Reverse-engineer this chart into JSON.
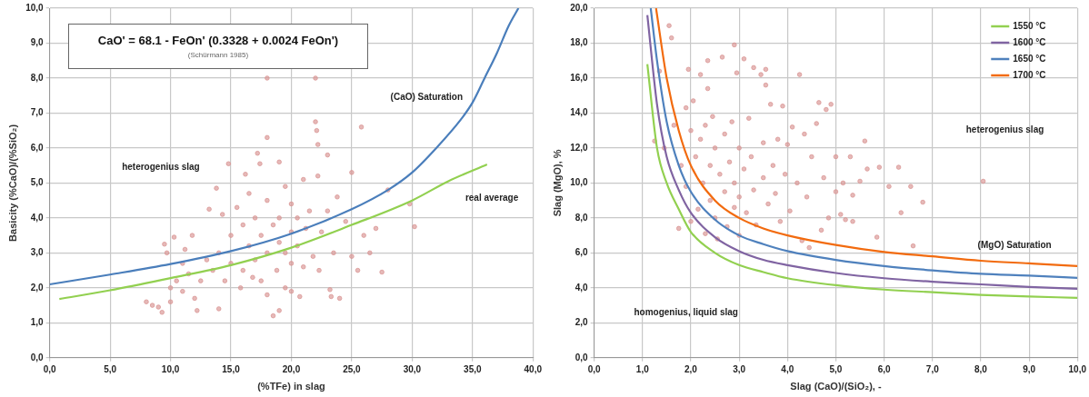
{
  "chart_data": [
    {
      "type": "scatter",
      "xlabel": "(%TFe) in slag",
      "ylabel": "Basicity (%CaO)/(%SiO₂)",
      "xlim": [
        0,
        40
      ],
      "xticks": [
        {
          "value": 0,
          "label": "0,0"
        },
        {
          "value": 5,
          "label": "5,0"
        },
        {
          "value": 10,
          "label": "10,0"
        },
        {
          "value": 15,
          "label": "15,0"
        },
        {
          "value": 20,
          "label": "20,0"
        },
        {
          "value": 25,
          "label": "25,0"
        },
        {
          "value": 30,
          "label": "30,0"
        },
        {
          "value": 35,
          "label": "35,0"
        },
        {
          "value": 40,
          "label": "40,0"
        }
      ],
      "ylim": [
        0,
        10
      ],
      "yticks": [
        {
          "value": 0,
          "label": "0,0"
        },
        {
          "value": 1,
          "label": "1,0"
        },
        {
          "value": 2,
          "label": "2,0"
        },
        {
          "value": 3,
          "label": "3,0"
        },
        {
          "value": 4,
          "label": "4,0"
        },
        {
          "value": 5,
          "label": "5,0"
        },
        {
          "value": 6,
          "label": "6,0"
        },
        {
          "value": 7,
          "label": "7,0"
        },
        {
          "value": 8,
          "label": "8,0"
        },
        {
          "value": 9,
          "label": "9,0"
        },
        {
          "value": 10,
          "label": "10,0"
        }
      ],
      "grid": true,
      "legend": false,
      "series": [
        {
          "type": "scatter",
          "marker": "circle",
          "color": "#d99694",
          "x": [
            8,
            8.5,
            9,
            9.3,
            9.5,
            9.7,
            10,
            10,
            10.3,
            10.5,
            11,
            11,
            11.2,
            11.5,
            11.8,
            12,
            12.2,
            12.5,
            13,
            13.2,
            13.5,
            13.8,
            14,
            14,
            14.3,
            14.5,
            14.8,
            15,
            15,
            15.5,
            15.8,
            16,
            16,
            16.2,
            16.5,
            16.5,
            16.8,
            17,
            17,
            17.2,
            17.4,
            17.5,
            17.5,
            18,
            18,
            18,
            18,
            18,
            18.5,
            18.5,
            18.8,
            19,
            19,
            19,
            19,
            19.5,
            19.5,
            19.5,
            20,
            20,
            20,
            20,
            20.5,
            20.5,
            20.7,
            21,
            21,
            21.2,
            21.5,
            21.8,
            22,
            22,
            22.1,
            22.2,
            22.2,
            22.3,
            22.5,
            23,
            23,
            23.2,
            23.3,
            23.5,
            23.8,
            24,
            24.5,
            25,
            25,
            25.5,
            25.8,
            26,
            26.5,
            27,
            27.5,
            28,
            29.8,
            30.2
          ],
          "values": [
            1.6,
            1.5,
            1.45,
            1.3,
            3.25,
            3.0,
            2.0,
            1.6,
            3.45,
            2.2,
            1.9,
            2.7,
            3.1,
            2.4,
            3.5,
            1.7,
            1.35,
            2.2,
            2.8,
            4.25,
            2.5,
            4.85,
            1.4,
            3.0,
            4.1,
            2.2,
            5.55,
            3.5,
            2.7,
            4.3,
            2.0,
            3.8,
            2.5,
            5.25,
            4.7,
            3.2,
            2.3,
            4.0,
            2.8,
            5.85,
            5.55,
            3.5,
            2.2,
            8.0,
            6.3,
            4.5,
            3.0,
            1.8,
            3.8,
            1.2,
            2.5,
            5.6,
            4.0,
            3.3,
            1.35,
            4.9,
            3.0,
            2.0,
            4.4,
            3.6,
            2.7,
            1.9,
            4.0,
            3.2,
            1.75,
            5.1,
            2.6,
            3.7,
            4.2,
            2.9,
            8.0,
            6.75,
            6.5,
            6.1,
            5.2,
            2.5,
            3.6,
            5.8,
            4.2,
            1.95,
            1.75,
            3.0,
            4.6,
            1.7,
            3.9,
            2.9,
            5.3,
            2.5,
            6.6,
            3.5,
            3.0,
            3.7,
            2.45,
            4.8,
            4.4,
            3.75
          ]
        },
        {
          "type": "line",
          "marker": "none",
          "line_style": "solid",
          "color": "#4a7ebb",
          "x": [
            0,
            5,
            10,
            15,
            20,
            25,
            28,
            30,
            32,
            34,
            35,
            36,
            37,
            38,
            38.8
          ],
          "values": [
            2.1,
            2.38,
            2.68,
            3.05,
            3.55,
            4.25,
            4.8,
            5.3,
            6.0,
            6.8,
            7.3,
            8.0,
            8.7,
            9.5,
            10.0
          ]
        },
        {
          "type": "line",
          "marker": "none",
          "line_style": "solid",
          "color": "#92d050",
          "x": [
            0.8,
            5,
            10,
            15,
            20,
            25,
            30,
            33,
            36.2
          ],
          "values": [
            1.68,
            1.93,
            2.28,
            2.65,
            3.15,
            3.8,
            4.5,
            5.05,
            5.53
          ]
        }
      ],
      "annotations": [
        "CaO' = 68.1 - FeOn' (0.3328 + 0.0024 FeOn')",
        "(Schürmann 1985)",
        "(CaO) Saturation",
        "real average",
        "heterogenius slag"
      ]
    },
    {
      "type": "scatter",
      "xlabel": "Slag (CaO)/(SiO₂), -",
      "ylabel": "Slag (MgO), %",
      "xlim": [
        0,
        10
      ],
      "xticks": [
        {
          "value": 0,
          "label": "0,0"
        },
        {
          "value": 1,
          "label": "1,0"
        },
        {
          "value": 2,
          "label": "2,0"
        },
        {
          "value": 3,
          "label": "3,0"
        },
        {
          "value": 4,
          "label": "4,0"
        },
        {
          "value": 5,
          "label": "5,0"
        },
        {
          "value": 6,
          "label": "6,0"
        },
        {
          "value": 7,
          "label": "7,0"
        },
        {
          "value": 8,
          "label": "8,0"
        },
        {
          "value": 9,
          "label": "9,0"
        },
        {
          "value": 10,
          "label": "10,0"
        }
      ],
      "ylim": [
        0,
        20
      ],
      "yticks": [
        {
          "value": 0,
          "label": "0,0"
        },
        {
          "value": 2,
          "label": "2,0"
        },
        {
          "value": 4,
          "label": "4,0"
        },
        {
          "value": 6,
          "label": "6,0"
        },
        {
          "value": 8,
          "label": "8,0"
        },
        {
          "value": 10,
          "label": "10,0"
        },
        {
          "value": 12,
          "label": "12,0"
        },
        {
          "value": 14,
          "label": "14,0"
        },
        {
          "value": 16,
          "label": "16,0"
        },
        {
          "value": 18,
          "label": "18,0"
        },
        {
          "value": 20,
          "label": "20,0"
        }
      ],
      "grid": true,
      "legend": "top right",
      "series": [
        {
          "type": "scatter",
          "marker": "circle",
          "color": "#d99694",
          "x": [
            1.25,
            1.35,
            1.45,
            1.55,
            1.6,
            1.65,
            1.75,
            1.8,
            1.9,
            1.9,
            1.95,
            2.0,
            2.0,
            2.05,
            2.1,
            2.15,
            2.2,
            2.2,
            2.25,
            2.3,
            2.3,
            2.35,
            2.35,
            2.4,
            2.4,
            2.45,
            2.5,
            2.5,
            2.55,
            2.6,
            2.65,
            2.7,
            2.7,
            2.75,
            2.8,
            2.85,
            2.9,
            2.9,
            2.9,
            2.95,
            3.0,
            3.0,
            3.0,
            3.1,
            3.1,
            3.15,
            3.2,
            3.25,
            3.3,
            3.3,
            3.35,
            3.45,
            3.5,
            3.5,
            3.55,
            3.55,
            3.6,
            3.65,
            3.7,
            3.75,
            3.8,
            3.85,
            3.9,
            3.95,
            4.0,
            4.05,
            4.1,
            4.2,
            4.25,
            4.3,
            4.35,
            4.4,
            4.45,
            4.5,
            4.6,
            4.65,
            4.7,
            4.75,
            4.8,
            4.85,
            4.9,
            5.0,
            5.0,
            5.1,
            5.15,
            5.2,
            5.3,
            5.35,
            5.35,
            5.5,
            5.6,
            5.65,
            5.85,
            5.9,
            6.1,
            6.3,
            6.35,
            6.55,
            6.6,
            6.8,
            8.05
          ],
          "values": [
            12.4,
            16.4,
            12.0,
            19.0,
            18.3,
            13.3,
            7.4,
            11.0,
            14.3,
            9.8,
            16.5,
            13.0,
            7.8,
            14.7,
            11.5,
            8.5,
            16.2,
            12.5,
            10.0,
            13.3,
            7.1,
            15.4,
            17.0,
            11.0,
            9.0,
            13.8,
            12.0,
            8.0,
            6.8,
            10.5,
            17.2,
            12.8,
            9.5,
            7.5,
            11.2,
            13.5,
            17.9,
            10.0,
            8.6,
            16.3,
            12.0,
            9.2,
            7.0,
            17.1,
            10.8,
            8.3,
            13.7,
            11.5,
            16.6,
            9.6,
            7.6,
            16.2,
            12.3,
            10.3,
            15.6,
            16.5,
            8.8,
            14.5,
            11.0,
            9.4,
            12.5,
            7.8,
            14.4,
            10.5,
            12.2,
            8.4,
            13.2,
            10.0,
            16.2,
            6.7,
            12.8,
            9.2,
            6.3,
            11.5,
            13.4,
            14.6,
            7.3,
            10.3,
            14.2,
            8.0,
            14.5,
            11.5,
            9.5,
            8.2,
            10.0,
            7.9,
            11.5,
            9.3,
            7.8,
            10.1,
            12.4,
            10.8,
            6.9,
            10.9,
            9.8,
            10.9,
            8.3,
            9.8,
            6.4,
            8.9,
            10.1
          ]
        },
        {
          "type": "line",
          "name": "1550 °C",
          "marker": "none",
          "line_style": "solid",
          "color": "#92d050",
          "x": [
            1.1,
            1.3,
            1.5,
            1.75,
            2,
            2.5,
            3,
            3.5,
            4,
            5,
            6,
            7,
            8,
            9,
            10
          ],
          "values": [
            16.8,
            12,
            10,
            8.5,
            7.2,
            6.0,
            5.3,
            4.9,
            4.55,
            4.15,
            3.9,
            3.75,
            3.6,
            3.5,
            3.43
          ]
        },
        {
          "type": "line",
          "name": "1600 °C",
          "marker": "none",
          "line_style": "solid",
          "color": "#8064a2",
          "x": [
            1.1,
            1.3,
            1.5,
            1.75,
            2,
            2.5,
            3,
            3.5,
            4,
            5,
            6,
            7,
            8,
            9,
            10
          ],
          "values": [
            19.6,
            14.5,
            11.5,
            9.6,
            8.3,
            6.9,
            6.1,
            5.6,
            5.3,
            4.85,
            4.55,
            4.35,
            4.2,
            4.05,
            3.95
          ]
        },
        {
          "type": "line",
          "name": "1650 °C",
          "marker": "none",
          "line_style": "solid",
          "color": "#4f81bd",
          "x": [
            1.17,
            1.3,
            1.5,
            1.75,
            2,
            2.5,
            3,
            3.5,
            4,
            5,
            6,
            7,
            8,
            9,
            10
          ],
          "values": [
            20,
            17,
            13.5,
            11,
            9.5,
            7.9,
            7.0,
            6.5,
            6.1,
            5.6,
            5.25,
            5.0,
            4.8,
            4.7,
            4.57
          ]
        },
        {
          "type": "line",
          "name": "1700 °C",
          "marker": "none",
          "line_style": "solid",
          "color": "#f26b0f",
          "x": [
            1.28,
            1.5,
            1.75,
            2,
            2.5,
            3,
            3.5,
            4,
            5,
            6,
            7,
            8,
            9,
            10
          ],
          "values": [
            20,
            16,
            13,
            11,
            9.0,
            8.0,
            7.4,
            7.0,
            6.45,
            6.05,
            5.8,
            5.55,
            5.4,
            5.25
          ]
        }
      ],
      "annotations": [
        "heterogenius slag",
        "homogenius, liquid slag",
        "(MgO) Saturation"
      ]
    }
  ]
}
